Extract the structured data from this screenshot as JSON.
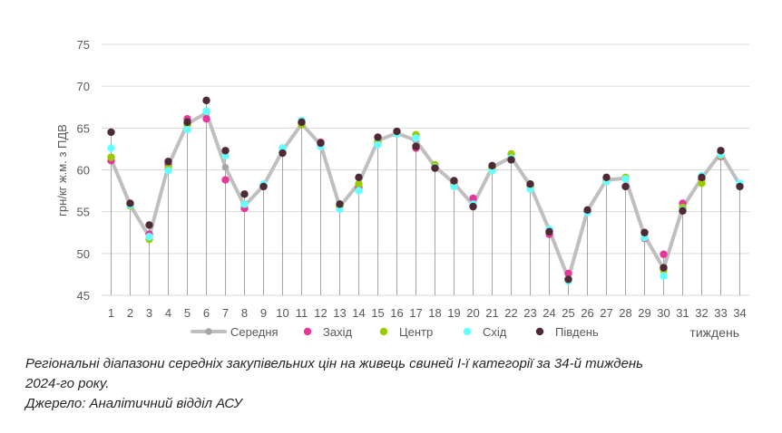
{
  "chart_data": {
    "type": "line",
    "title": "",
    "ylabel": "грн/кг ж.м. з ПДВ",
    "xlabel": "тиждень",
    "ylim": [
      45,
      75
    ],
    "yticks": [
      45,
      50,
      55,
      60,
      65,
      70,
      75
    ],
    "categories": [
      "1",
      "2",
      "3",
      "4",
      "5",
      "6",
      "7",
      "8",
      "9",
      "10",
      "11",
      "12",
      "13",
      "14",
      "15",
      "16",
      "17",
      "18",
      "19",
      "20",
      "21",
      "22",
      "23",
      "24",
      "25",
      "26",
      "27",
      "28",
      "29",
      "30",
      "31",
      "32",
      "33",
      "34"
    ],
    "series": [
      {
        "name": "Середня",
        "color": "#bfbfbf",
        "style": "line",
        "values": [
          61.3,
          55.8,
          52.0,
          60.5,
          65.5,
          66.8,
          60.3,
          55.7,
          58.1,
          62.3,
          65.5,
          63.0,
          55.6,
          58.4,
          63.5,
          64.4,
          63.5,
          60.4,
          58.4,
          55.8,
          60.3,
          61.5,
          58.1,
          52.8,
          47.0,
          55.1,
          58.8,
          59.0,
          52.1,
          48.2,
          55.5,
          59.0,
          62.0,
          58.2
        ]
      },
      {
        "name": "Захід",
        "color": "#e8379b",
        "style": "marker",
        "values": [
          61.1,
          55.9,
          52.3,
          60.6,
          66.1,
          66.1,
          58.8,
          55.4,
          58.0,
          62.6,
          65.6,
          63.3,
          55.5,
          57.9,
          63.3,
          64.4,
          62.6,
          60.3,
          58.5,
          56.6,
          60.3,
          61.3,
          58.1,
          52.3,
          47.6,
          55.0,
          58.7,
          58.9,
          51.8,
          49.9,
          56.0,
          58.9,
          61.6,
          58.3
        ]
      },
      {
        "name": "Центр",
        "color": "#99cc00",
        "style": "marker",
        "values": [
          61.5,
          55.7,
          51.7,
          60.2,
          65.4,
          67.0,
          61.7,
          55.9,
          58.1,
          62.1,
          65.4,
          62.9,
          55.6,
          58.3,
          63.4,
          64.3,
          64.2,
          60.6,
          58.2,
          55.8,
          60.2,
          61.9,
          57.9,
          52.6,
          46.9,
          55.0,
          58.6,
          59.1,
          51.9,
          48.0,
          55.5,
          58.4,
          61.7,
          58.1
        ]
      },
      {
        "name": "Схід",
        "color": "#66ffff",
        "style": "marker",
        "values": [
          62.6,
          55.8,
          52.0,
          59.9,
          64.8,
          67.0,
          61.7,
          55.9,
          58.3,
          62.6,
          65.9,
          62.8,
          55.3,
          57.5,
          63.0,
          64.3,
          63.8,
          60.3,
          58.0,
          55.9,
          59.9,
          61.4,
          57.7,
          52.9,
          46.7,
          54.9,
          58.6,
          58.9,
          51.9,
          47.3,
          55.2,
          59.3,
          61.8,
          58.4
        ]
      },
      {
        "name": "Південь",
        "color": "#4d2a35",
        "style": "marker",
        "values": [
          64.5,
          56.0,
          53.4,
          61.0,
          65.7,
          68.3,
          62.3,
          57.1,
          58.0,
          62.0,
          65.7,
          63.2,
          55.9,
          59.1,
          63.9,
          64.6,
          62.8,
          60.2,
          58.7,
          55.6,
          60.5,
          61.2,
          58.3,
          52.6,
          46.9,
          55.2,
          59.1,
          58.0,
          52.5,
          48.3,
          55.1,
          59.1,
          62.3,
          58.0
        ]
      }
    ],
    "legend_position": "bottom",
    "grid": true
  },
  "caption": {
    "line1": "Регіональні діапазони середніх закупівельних цін на живець свиней І-ї категорії за 34-й тиждень",
    "line2": "2024-го року.",
    "line3": "Джерело: Аналітичний відділ АСУ"
  },
  "colors": {
    "gridline": "#d9d9d9",
    "axis_text": "#595959",
    "drop_line": "#a6a6a6"
  }
}
